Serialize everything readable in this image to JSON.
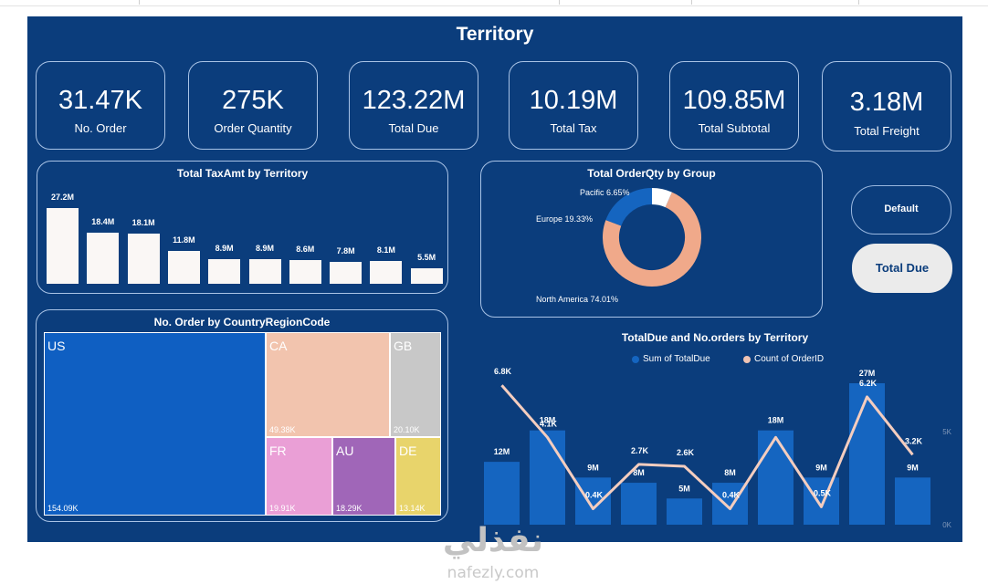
{
  "page": {
    "title": "Territory"
  },
  "kpis": [
    {
      "value": "31.47K",
      "label": "No. Order"
    },
    {
      "value": "275K",
      "label": "Order Quantity"
    },
    {
      "value": "123.22M",
      "label": "Total Due"
    },
    {
      "value": "10.19M",
      "label": "Total Tax"
    },
    {
      "value": "109.85M",
      "label": "Total Subtotal"
    },
    {
      "value": "3.18M",
      "label": "Total Freight"
    }
  ],
  "buttons": {
    "default_label": "Default",
    "totaldue_label": "Total Due"
  },
  "colors": {
    "background": "#0b3d7c",
    "bar_light": "#faf7f5",
    "bar_blue": "#1565c0",
    "peach": "#f0a98a",
    "blue_ring": "#1565c0"
  },
  "chart_data": [
    {
      "type": "bar",
      "title": "Total TaxAmt by Territory",
      "values": [
        27.2,
        18.4,
        18.1,
        11.8,
        8.9,
        8.9,
        8.6,
        7.8,
        8.1,
        5.5
      ],
      "labels": [
        "27.2M",
        "18.4M",
        "18.1M",
        "11.8M",
        "8.9M",
        "8.9M",
        "8.6M",
        "7.8M",
        "8.1M",
        "5.5M"
      ]
    },
    {
      "type": "pie",
      "title": "Total OrderQty by Group",
      "slices": [
        {
          "name": "North America",
          "value": 74.01,
          "label": "North America 74.01%"
        },
        {
          "name": "Europe",
          "value": 19.33,
          "label": "Europe 19.33%"
        },
        {
          "name": "Pacific",
          "value": 6.65,
          "label": "Pacific 6.65%"
        }
      ]
    },
    {
      "type": "heatmap",
      "title": "No. Order by CountryRegionCode",
      "tiles": [
        {
          "name": "US",
          "value": "154.09K",
          "color": "#0f5fc2"
        },
        {
          "name": "CA",
          "value": "49.38K",
          "color": "#f2c4ae"
        },
        {
          "name": "GB",
          "value": "20.10K",
          "color": "#c8c8c8"
        },
        {
          "name": "FR",
          "value": "19.91K",
          "color": "#ea9fd6"
        },
        {
          "name": "AU",
          "value": "18.29K",
          "color": "#a066b8"
        },
        {
          "name": "DE",
          "value": "13.14K",
          "color": "#e8d46b"
        }
      ]
    },
    {
      "type": "bar",
      "title": "TotalDue and No.orders by Territory",
      "legend": [
        "Sum of TotalDue",
        "Count of OrderID"
      ],
      "bars": [
        12,
        18,
        9,
        8,
        5,
        8,
        18,
        9,
        27,
        9
      ],
      "bar_labels": [
        "12M",
        "18M",
        "9M",
        "8M",
        "5M",
        "8M",
        "18M",
        "9M",
        "27M",
        "9M"
      ],
      "line": [
        6.8,
        4.1,
        0.4,
        2.7,
        2.6,
        0.4,
        4.1,
        0.5,
        6.2,
        3.2
      ],
      "line_labels": [
        "6.8K",
        "4.1K",
        "0.4K",
        "2.7K",
        "2.6K",
        "0.4K",
        "",
        "0.5K",
        "6.2K",
        "3.2K"
      ],
      "right_axis": [
        "5K",
        "0K"
      ]
    }
  ],
  "watermark": {
    "arabic": "نفذلي",
    "latin": "nafezly.com"
  }
}
